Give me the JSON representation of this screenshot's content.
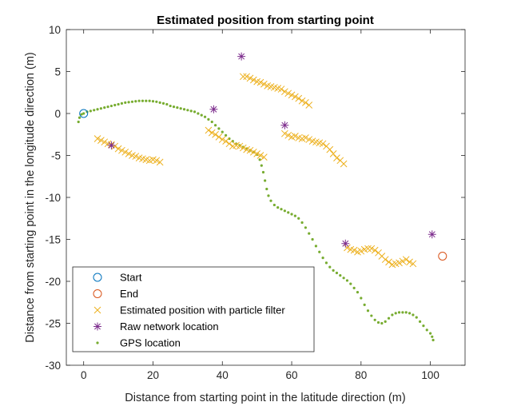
{
  "chart_data": {
    "type": "scatter",
    "title": "Estimated position from starting point",
    "xlabel": "Distance from starting point in the latitude direction (m)",
    "ylabel": "Distance from starting point in the longitude direction (m)",
    "xlim": [
      -5,
      110
    ],
    "ylim": [
      -30,
      10
    ],
    "xticks": [
      0,
      20,
      40,
      60,
      80,
      100
    ],
    "yticks": [
      -30,
      -25,
      -20,
      -15,
      -10,
      -5,
      0,
      5,
      10
    ],
    "grid": false,
    "legend_position": "bottom-left",
    "series": [
      {
        "name": "Start",
        "marker": "circle",
        "color": "#0072BD",
        "points": [
          [
            0,
            0
          ]
        ]
      },
      {
        "name": "End",
        "marker": "circle",
        "color": "#D95319",
        "points": [
          [
            103.5,
            -17
          ]
        ]
      },
      {
        "name": "Estimated position with particle filter",
        "marker": "x",
        "color": "#EDB120",
        "points": [
          [
            4,
            -3
          ],
          [
            5,
            -3.2
          ],
          [
            6,
            -3.4
          ],
          [
            7,
            -3.6
          ],
          [
            8,
            -3.7
          ],
          [
            9,
            -3.9
          ],
          [
            10,
            -4.2
          ],
          [
            11,
            -4.4
          ],
          [
            12,
            -4.6
          ],
          [
            13,
            -4.8
          ],
          [
            14,
            -5
          ],
          [
            15,
            -5.1
          ],
          [
            16,
            -5.3
          ],
          [
            17,
            -5.4
          ],
          [
            18,
            -5.5
          ],
          [
            19,
            -5.6
          ],
          [
            20,
            -5.5
          ],
          [
            21,
            -5.6
          ],
          [
            22,
            -5.8
          ],
          [
            36,
            -2
          ],
          [
            37,
            -2.3
          ],
          [
            38,
            -2.5
          ],
          [
            39,
            -2.8
          ],
          [
            40,
            -3.1
          ],
          [
            41,
            -3.3
          ],
          [
            42,
            -3.6
          ],
          [
            43,
            -3.9
          ],
          [
            44,
            -3.8
          ],
          [
            45,
            -3.9
          ],
          [
            46,
            -4.1
          ],
          [
            47,
            -4.3
          ],
          [
            48,
            -4.4
          ],
          [
            49,
            -4.6
          ],
          [
            50,
            -4.8
          ],
          [
            51,
            -5
          ],
          [
            52,
            -5.2
          ],
          [
            46,
            4.4
          ],
          [
            47,
            4.4
          ],
          [
            48,
            4.2
          ],
          [
            49,
            4
          ],
          [
            50,
            3.8
          ],
          [
            51,
            3.7
          ],
          [
            52,
            3.5
          ],
          [
            53,
            3.3
          ],
          [
            54,
            3.2
          ],
          [
            55,
            3.1
          ],
          [
            56,
            3
          ],
          [
            57,
            2.9
          ],
          [
            58,
            2.6
          ],
          [
            59,
            2.4
          ],
          [
            60,
            2.2
          ],
          [
            61,
            2
          ],
          [
            62,
            1.8
          ],
          [
            63,
            1.5
          ],
          [
            64,
            1.3
          ],
          [
            65,
            1
          ],
          [
            58,
            -2.4
          ],
          [
            59,
            -2.6
          ],
          [
            60,
            -2.8
          ],
          [
            61,
            -2.7
          ],
          [
            62,
            -2.9
          ],
          [
            63,
            -3
          ],
          [
            64,
            -2.9
          ],
          [
            65,
            -3.1
          ],
          [
            66,
            -3.3
          ],
          [
            67,
            -3.4
          ],
          [
            68,
            -3.5
          ],
          [
            69,
            -3.6
          ],
          [
            70,
            -3.9
          ],
          [
            71,
            -4.3
          ],
          [
            72,
            -4.8
          ],
          [
            73,
            -5.3
          ],
          [
            74,
            -5.6
          ],
          [
            75,
            -6
          ],
          [
            76,
            -16
          ],
          [
            77,
            -16.2
          ],
          [
            78,
            -16.3
          ],
          [
            79,
            -16.5
          ],
          [
            80,
            -16.4
          ],
          [
            81,
            -16.2
          ],
          [
            82,
            -16.1
          ],
          [
            83,
            -16.1
          ],
          [
            84,
            -16.3
          ],
          [
            85,
            -16.6
          ],
          [
            86,
            -17
          ],
          [
            87,
            -17.4
          ],
          [
            88,
            -17.7
          ],
          [
            89,
            -18
          ],
          [
            90,
            -17.9
          ],
          [
            91,
            -17.8
          ],
          [
            92,
            -17.6
          ],
          [
            93,
            -17.4
          ],
          [
            94,
            -17.7
          ],
          [
            95,
            -17.9
          ]
        ]
      },
      {
        "name": "Raw network location",
        "marker": "asterisk",
        "color": "#7E2F8E",
        "points": [
          [
            8,
            -3.8
          ],
          [
            37.5,
            0.5
          ],
          [
            45.5,
            6.8
          ],
          [
            58,
            -1.4
          ],
          [
            75.5,
            -15.5
          ],
          [
            100.5,
            -14.4
          ]
        ]
      },
      {
        "name": "GPS location",
        "marker": "dot",
        "color": "#77AC30",
        "points": [
          [
            -1.5,
            -1
          ],
          [
            -1.2,
            -0.5
          ],
          [
            -0.6,
            -0.1
          ],
          [
            0,
            0
          ],
          [
            1,
            0.2
          ],
          [
            2,
            0.3
          ],
          [
            3,
            0.4
          ],
          [
            4,
            0.5
          ],
          [
            5,
            0.6
          ],
          [
            6,
            0.7
          ],
          [
            7,
            0.8
          ],
          [
            8,
            0.9
          ],
          [
            9,
            1
          ],
          [
            10,
            1.1
          ],
          [
            11,
            1.2
          ],
          [
            12,
            1.3
          ],
          [
            13,
            1.35
          ],
          [
            14,
            1.4
          ],
          [
            15,
            1.45
          ],
          [
            16,
            1.5
          ],
          [
            17,
            1.5
          ],
          [
            18,
            1.5
          ],
          [
            19,
            1.5
          ],
          [
            20,
            1.45
          ],
          [
            21,
            1.4
          ],
          [
            22,
            1.3
          ],
          [
            23,
            1.2
          ],
          [
            24,
            1.1
          ],
          [
            25,
            0.9
          ],
          [
            26,
            0.8
          ],
          [
            27,
            0.7
          ],
          [
            28,
            0.6
          ],
          [
            29,
            0.5
          ],
          [
            30,
            0.4
          ],
          [
            31,
            0.3
          ],
          [
            32,
            0.2
          ],
          [
            33,
            0
          ],
          [
            34,
            -0.2
          ],
          [
            35,
            -0.4
          ],
          [
            36,
            -0.7
          ],
          [
            37,
            -1
          ],
          [
            38,
            -1.4
          ],
          [
            39,
            -1.8
          ],
          [
            40,
            -2.2
          ],
          [
            41,
            -2.6
          ],
          [
            42,
            -3
          ],
          [
            43,
            -3.3
          ],
          [
            44,
            -3.6
          ],
          [
            45,
            -3.8
          ],
          [
            46,
            -4
          ],
          [
            47,
            -4.2
          ],
          [
            48,
            -4.4
          ],
          [
            49,
            -4.6
          ],
          [
            50,
            -4.9
          ],
          [
            50.8,
            -5.5
          ],
          [
            51.3,
            -6.2
          ],
          [
            51.8,
            -7
          ],
          [
            52.3,
            -8
          ],
          [
            52.8,
            -9
          ],
          [
            53.3,
            -9.8
          ],
          [
            54,
            -10.4
          ],
          [
            55,
            -10.9
          ],
          [
            56,
            -11.2
          ],
          [
            57,
            -11.4
          ],
          [
            58,
            -11.6
          ],
          [
            59,
            -11.8
          ],
          [
            60,
            -12
          ],
          [
            61,
            -12.2
          ],
          [
            62,
            -12.5
          ],
          [
            63,
            -13
          ],
          [
            64,
            -13.6
          ],
          [
            65,
            -14.3
          ],
          [
            66,
            -15
          ],
          [
            67,
            -15.8
          ],
          [
            68,
            -16.5
          ],
          [
            69,
            -17.2
          ],
          [
            70,
            -17.8
          ],
          [
            71,
            -18.3
          ],
          [
            72,
            -18.7
          ],
          [
            73,
            -19
          ],
          [
            74,
            -19.3
          ],
          [
            75,
            -19.6
          ],
          [
            76,
            -19.9
          ],
          [
            77,
            -20.3
          ],
          [
            78,
            -20.8
          ],
          [
            79,
            -21.3
          ],
          [
            80,
            -22
          ],
          [
            81,
            -22.8
          ],
          [
            82,
            -23.5
          ],
          [
            83,
            -24.1
          ],
          [
            84,
            -24.6
          ],
          [
            85,
            -24.9
          ],
          [
            86,
            -25
          ],
          [
            87,
            -24.8
          ],
          [
            88,
            -24.4
          ],
          [
            89,
            -24
          ],
          [
            90,
            -23.8
          ],
          [
            91,
            -23.7
          ],
          [
            92,
            -23.7
          ],
          [
            93,
            -23.7
          ],
          [
            94,
            -23.8
          ],
          [
            95,
            -24
          ],
          [
            96,
            -24.3
          ],
          [
            97,
            -24.8
          ],
          [
            98,
            -25.3
          ],
          [
            99,
            -25.8
          ],
          [
            100,
            -26.2
          ],
          [
            100.5,
            -26.6
          ],
          [
            100.8,
            -27
          ]
        ]
      }
    ]
  }
}
